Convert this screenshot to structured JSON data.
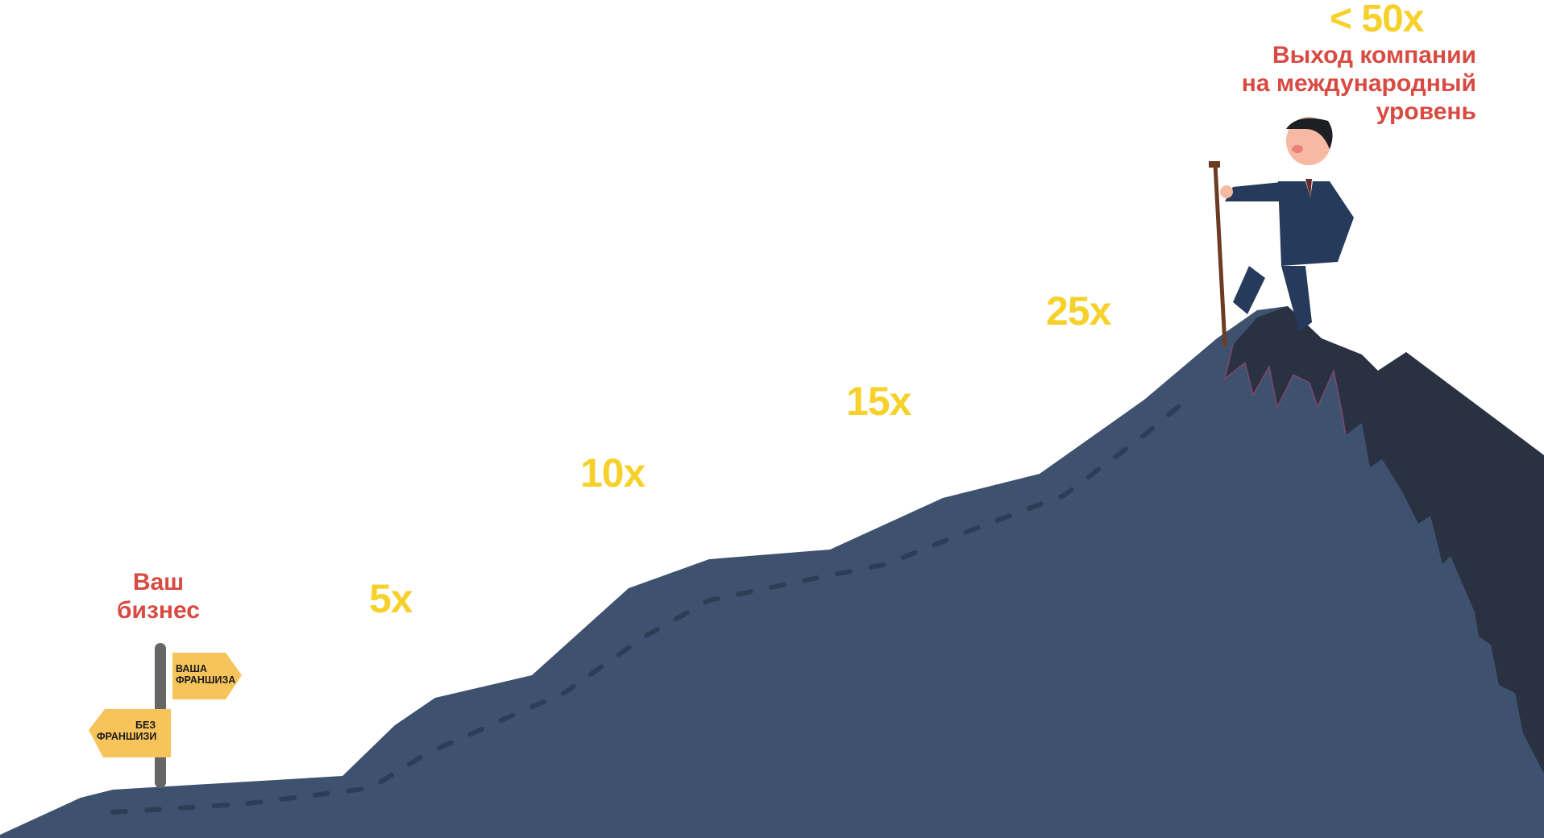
{
  "scene": {
    "sky_color": "#ffffff",
    "mountain_color": "#3e5270",
    "mountain_shadow_color": "#2a3242",
    "path_dash_color": "#2e3d56",
    "multiplier_color": "#f7d12b",
    "label_color": "#d84a42"
  },
  "start": {
    "label_line1": "Ваш",
    "label_line2": "бизнес"
  },
  "signpost": {
    "right_sign_line1": "ВАША",
    "right_sign_line2": "ФРАНШИЗА",
    "left_sign_line1": "БЕЗ",
    "left_sign_line2": "ФРАНШИЗИ",
    "sign_color": "#f6c45a",
    "post_color": "#666666"
  },
  "milestones": [
    "5x",
    "10x",
    "15x",
    "25x",
    "< 50x"
  ],
  "goal": {
    "line1": "Выход компании",
    "line2": "на международный",
    "line3": "уровень"
  },
  "character": {
    "icon": "businessman-with-staff-icon",
    "suit_color": "#263a5c",
    "tie_color": "#6b2a2a"
  }
}
